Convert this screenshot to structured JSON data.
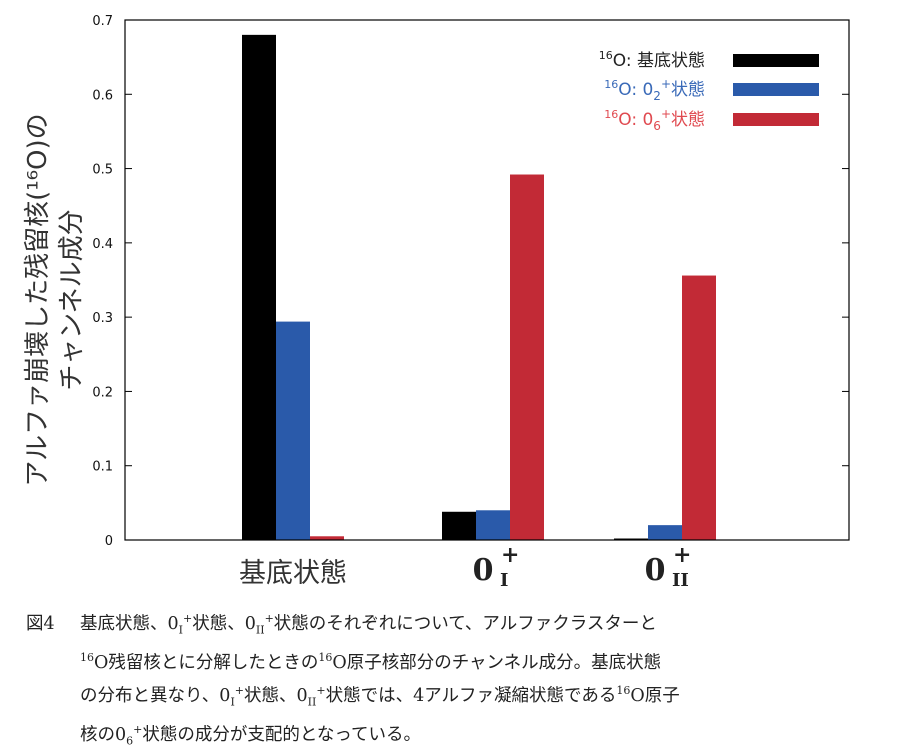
{
  "chart_data": {
    "type": "bar",
    "ylabel": [
      "アルファ崩壊した残留核(¹⁶O)の",
      "チャンネル成分"
    ],
    "ylim": [
      0,
      0.7
    ],
    "yticks": [
      "0",
      "0.1",
      "0.2",
      "0.3",
      "0.4",
      "0.5",
      "0.6",
      "0.7"
    ],
    "categories": [
      {
        "main": "基底状態",
        "sub": "",
        "sup": ""
      },
      {
        "main": "0",
        "sub": "I",
        "sup": "+"
      },
      {
        "main": "0",
        "sub": "II",
        "sup": "+"
      }
    ],
    "series": [
      {
        "name": "基底状態",
        "prefix_sup": "16",
        "prefix": "O: ",
        "sub": "",
        "sup": "",
        "suffix": "",
        "color": "#000000",
        "text_color": "#222222",
        "values": [
          0.68,
          0.038,
          0.002
        ]
      },
      {
        "name": "0₂⁺状態",
        "prefix_sup": "16",
        "prefix": "O: ",
        "main": "0",
        "sub": "2",
        "sup": "+",
        "suffix": "状態",
        "color": "#2a5aaa",
        "text_color": "#3a6ab8",
        "values": [
          0.294,
          0.04,
          0.02
        ]
      },
      {
        "name": "0₆⁺状態",
        "prefix_sup": "16",
        "prefix": "O: ",
        "main": "0",
        "sub": "6",
        "sup": "+",
        "suffix": "状態",
        "color": "#c22a36",
        "text_color": "#e04a50",
        "values": [
          0.005,
          0.492,
          0.356
        ]
      }
    ],
    "legend_position": "top-right"
  },
  "caption": {
    "fig_no": "図4",
    "lines": [
      "基底状態、0<sub>I</sub><sup>+</sup>状態、0<sub>II</sub><sup>+</sup>状態のそれぞれについて、アルファクラスターと",
      "<sup>16</sup>O残留核とに分解したときの<sup>16</sup>O原子核部分のチャンネル成分。基底状態",
      "の分布と異なり、0<sub>I</sub><sup>+</sup>状態、0<sub>II</sub><sup>+</sup>状態では、4アルファ凝縮状態である<sup>16</sup>O原子",
      "核の0<sub>6</sub><sup>+</sup>状態の成分が支配的となっている。"
    ]
  }
}
